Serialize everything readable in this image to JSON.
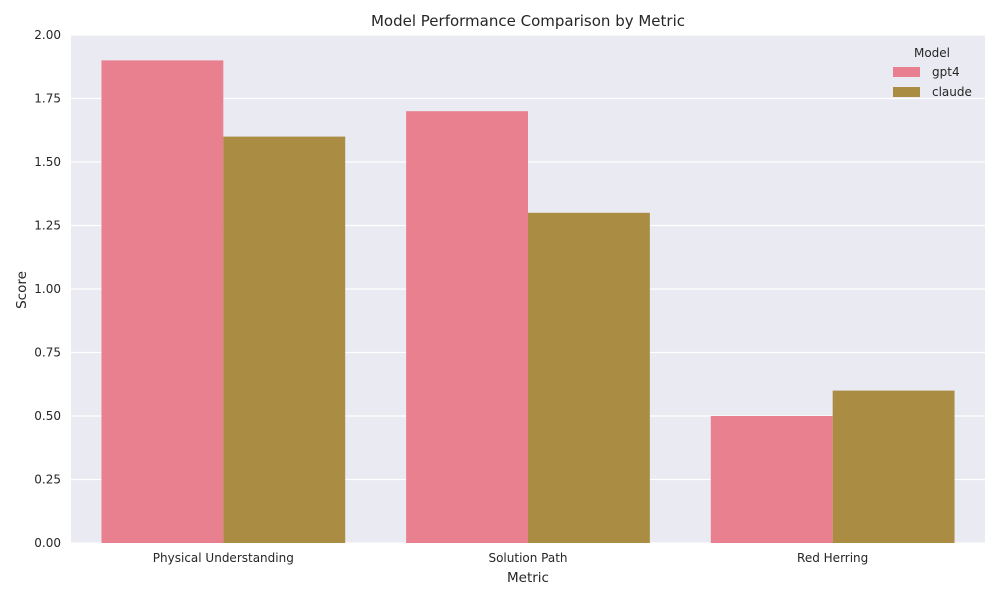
{
  "chart_data": {
    "type": "bar",
    "title": "Model Performance Comparison by Metric",
    "xlabel": "Metric",
    "ylabel": "Score",
    "categories": [
      "Physical Understanding",
      "Solution Path",
      "Red Herring"
    ],
    "series": [
      {
        "name": "gpt4",
        "color": "#e8808f",
        "values": [
          1.9,
          1.7,
          0.5
        ]
      },
      {
        "name": "claude",
        "color": "#aa8d42",
        "values": [
          1.6,
          1.3,
          0.6
        ]
      }
    ],
    "ylim": [
      0,
      2.0
    ],
    "yticks": [
      "0.00",
      "0.25",
      "0.50",
      "0.75",
      "1.00",
      "1.25",
      "1.50",
      "1.75",
      "2.00"
    ],
    "legend": {
      "title": "Model",
      "placement": "top-right"
    },
    "grid": true,
    "background_color": "#eaeaf2",
    "grid_color": "#ffffff"
  }
}
